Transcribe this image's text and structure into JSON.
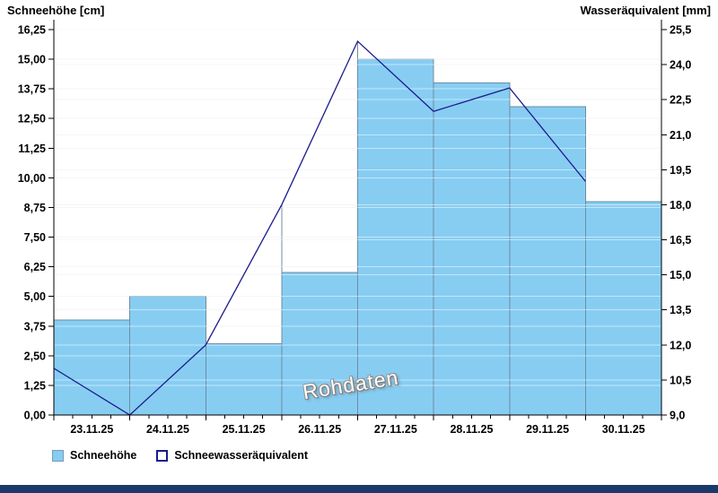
{
  "page": {
    "left_axis_title": "Schneehöhe [cm]",
    "right_axis_title": "Wasseräquivalent [mm]",
    "watermark": "Rohdaten"
  },
  "chart_data": {
    "type": "combo",
    "title": "",
    "categories": [
      "23.11.25",
      "24.11.25",
      "25.11.25",
      "26.11.25",
      "27.11.25",
      "28.11.25",
      "29.11.25",
      "30.11.25"
    ],
    "series": [
      {
        "name": "Schneehöhe",
        "type": "bar",
        "axis": "left",
        "unit": "cm",
        "values": [
          4,
          5,
          3,
          6,
          15,
          14,
          13,
          9
        ]
      },
      {
        "name": "Schneewasseräquivalent",
        "type": "line",
        "axis": "right",
        "unit": "mm",
        "values": [
          11,
          9,
          12,
          18,
          25,
          22,
          23,
          19
        ],
        "x_positions": "day-start-boundaries"
      }
    ],
    "left_axis": {
      "title": "Schneehöhe [cm]",
      "min": 0,
      "max": 16.25,
      "step": 1.25,
      "tick_labels": [
        "0,00",
        "1,25",
        "2,50",
        "3,75",
        "5,00",
        "6,25",
        "7,50",
        "8,75",
        "10,00",
        "11,25",
        "12,50",
        "13,75",
        "15,00",
        "16,25"
      ]
    },
    "right_axis": {
      "title": "Wasseräquivalent [mm]",
      "min": 9,
      "max": 25.5,
      "step": 1.5,
      "tick_labels": [
        "9,0",
        "10,5",
        "12,0",
        "13,5",
        "15,0",
        "16,5",
        "18,0",
        "19,5",
        "21,0",
        "22,5",
        "24,0",
        "25,5"
      ]
    },
    "x_axis": {
      "minor_ticks_per_day": 4
    },
    "legend": [
      {
        "label": "Schneehöhe",
        "swatch": "filled-blue-square"
      },
      {
        "label": "Schneewasseräquivalent",
        "swatch": "outlined-navy-square"
      }
    ],
    "grid": true,
    "legend_position": "bottom-left",
    "watermark": "Rohdaten",
    "colors": {
      "bar_fill": "#87CDF2",
      "bar_border": "#6D8CA3",
      "line": "#1A1A8C",
      "grid": "#ECECEC",
      "grid_on_bars": "rgba(255,255,255,0.5)",
      "axis": "#000000",
      "watermark_text": "#FFFFFF",
      "footer_bar": "#1B3A6B"
    }
  }
}
